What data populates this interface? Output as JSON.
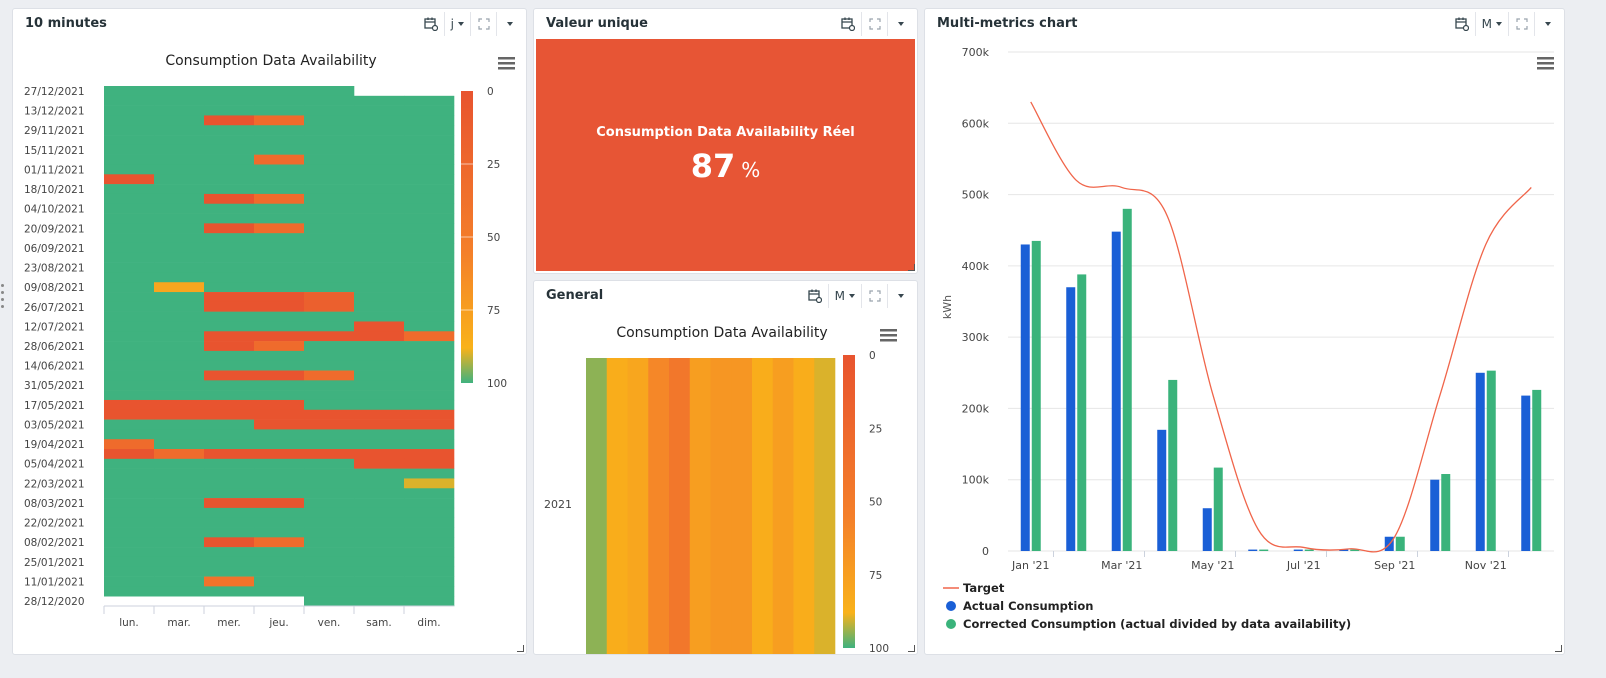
{
  "colors": {
    "green": "#3fb27f",
    "red": "#e8542f",
    "orange": "#f47f2a",
    "amber": "#f9a61a",
    "olive": "#8ab04e",
    "blue": "#1a5fd6",
    "teal": "#3ab37b",
    "target": "#f0654a"
  },
  "icons": {
    "calendar": "calendar-link-icon",
    "expand": "expand-icon",
    "dropdown": "chevron-down-icon",
    "menu": "hamburger-menu-icon"
  },
  "panel1": {
    "title": "10 minutes",
    "period": "j",
    "chart_title": "Consumption Data Availability",
    "rows": [
      "27/12/2021",
      "13/12/2021",
      "29/11/2021",
      "15/11/2021",
      "01/11/2021",
      "18/10/2021",
      "04/10/2021",
      "20/09/2021",
      "06/09/2021",
      "23/08/2021",
      "09/08/2021",
      "26/07/2021",
      "12/07/2021",
      "28/06/2021",
      "14/06/2021",
      "31/05/2021",
      "17/05/2021",
      "03/05/2021",
      "19/04/2021",
      "05/04/2021",
      "22/03/2021",
      "08/03/2021",
      "22/02/2021",
      "08/02/2021",
      "25/01/2021",
      "11/01/2021",
      "28/12/2020"
    ],
    "cols": [
      "lun.",
      "mar.",
      "mer.",
      "jeu.",
      "ven.",
      "sam.",
      "dim."
    ],
    "scale": [
      "0",
      "25",
      "50",
      "75",
      "100"
    ]
  },
  "panel2": {
    "title": "Valeur unique",
    "label": "Consumption Data Availability Réel",
    "value": "87",
    "unit": "%"
  },
  "panel3": {
    "title": "General",
    "period": "M",
    "chart_title": "Consumption Data Availability",
    "year": "2021",
    "scale": [
      "0",
      "25",
      "50",
      "75",
      "100"
    ]
  },
  "panel4": {
    "title": "Multi-metrics chart",
    "period": "M"
  },
  "chart_data": [
    {
      "type": "heatmap",
      "title": "Consumption Data Availability",
      "scale_range": [
        0,
        100
      ],
      "weeks": [
        "27/12/2021",
        "13/12/2021",
        "29/11/2021",
        "15/11/2021",
        "01/11/2021",
        "18/10/2021",
        "04/10/2021",
        "20/09/2021",
        "06/09/2021",
        "23/08/2021",
        "09/08/2021",
        "26/07/2021",
        "12/07/2021",
        "28/06/2021",
        "14/06/2021",
        "31/05/2021",
        "17/05/2021",
        "03/05/2021",
        "19/04/2021",
        "05/04/2021",
        "22/03/2021",
        "08/03/2021",
        "22/02/2021",
        "08/02/2021",
        "25/01/2021",
        "11/01/2021",
        "28/12/2020"
      ],
      "days": [
        "lun.",
        "mar.",
        "mer.",
        "jeu.",
        "ven.",
        "sam.",
        "dim."
      ],
      "values": [
        [
          100,
          100,
          100,
          100,
          100,
          null,
          null
        ],
        [
          100,
          100,
          100,
          100,
          100,
          100,
          100
        ],
        [
          100,
          100,
          100,
          100,
          100,
          100,
          100
        ],
        [
          100,
          100,
          0,
          30,
          100,
          100,
          100
        ],
        [
          100,
          100,
          100,
          100,
          100,
          100,
          100
        ],
        [
          100,
          100,
          100,
          100,
          100,
          100,
          100
        ],
        [
          100,
          100,
          100,
          100,
          100,
          100,
          100
        ],
        [
          100,
          100,
          100,
          30,
          100,
          100,
          100
        ],
        [
          100,
          100,
          100,
          100,
          100,
          100,
          100
        ],
        [
          0,
          100,
          100,
          100,
          100,
          100,
          100
        ],
        [
          100,
          100,
          100,
          100,
          100,
          100,
          100
        ],
        [
          100,
          100,
          0,
          30,
          100,
          100,
          100
        ],
        [
          100,
          100,
          100,
          100,
          100,
          100,
          100
        ],
        [
          100,
          100,
          100,
          100,
          100,
          100,
          100
        ],
        [
          100,
          100,
          0,
          30,
          100,
          100,
          100
        ],
        [
          100,
          100,
          100,
          100,
          100,
          100,
          100
        ],
        [
          100,
          100,
          100,
          100,
          100,
          100,
          100
        ],
        [
          100,
          100,
          100,
          100,
          100,
          100,
          100
        ],
        [
          100,
          100,
          100,
          100,
          100,
          100,
          100
        ],
        [
          100,
          100,
          100,
          100,
          100,
          100,
          100
        ],
        [
          100,
          80,
          100,
          100,
          100,
          100,
          100
        ],
        [
          100,
          100,
          0,
          0,
          15,
          100,
          100
        ],
        [
          100,
          100,
          0,
          0,
          15,
          100,
          100
        ],
        [
          100,
          100,
          100,
          100,
          100,
          100,
          100
        ],
        [
          100,
          100,
          100,
          100,
          100,
          0,
          100
        ],
        [
          100,
          100,
          0,
          0,
          0,
          0,
          30
        ],
        [
          100,
          100,
          0,
          30,
          100,
          100,
          100
        ],
        [
          100,
          100,
          100,
          100,
          100,
          100,
          100
        ],
        [
          100,
          100,
          100,
          100,
          100,
          100,
          100
        ],
        [
          100,
          100,
          0,
          0,
          30,
          100,
          100
        ],
        [
          100,
          100,
          100,
          100,
          100,
          100,
          100
        ],
        [
          100,
          100,
          100,
          100,
          100,
          100,
          100
        ],
        [
          0,
          0,
          0,
          0,
          100,
          100,
          100
        ],
        [
          0,
          0,
          0,
          0,
          0,
          0,
          0
        ],
        [
          100,
          100,
          100,
          0,
          0,
          0,
          0
        ],
        [
          100,
          100,
          100,
          100,
          100,
          100,
          100
        ],
        [
          30,
          100,
          100,
          100,
          100,
          100,
          100
        ],
        [
          0,
          30,
          0,
          0,
          0,
          0,
          0
        ],
        [
          100,
          100,
          100,
          100,
          100,
          0,
          0
        ],
        [
          100,
          100,
          100,
          100,
          100,
          100,
          100
        ],
        [
          100,
          100,
          100,
          100,
          100,
          100,
          90
        ],
        [
          100,
          100,
          100,
          100,
          100,
          100,
          100
        ],
        [
          100,
          100,
          0,
          0,
          100,
          100,
          100
        ],
        [
          100,
          100,
          100,
          100,
          100,
          100,
          100
        ],
        [
          100,
          100,
          100,
          100,
          100,
          100,
          100
        ],
        [
          100,
          100,
          100,
          100,
          100,
          100,
          100
        ],
        [
          100,
          100,
          0,
          30,
          100,
          100,
          100
        ],
        [
          100,
          100,
          100,
          100,
          100,
          100,
          100
        ],
        [
          100,
          100,
          100,
          100,
          100,
          100,
          100
        ],
        [
          100,
          100,
          100,
          100,
          100,
          100,
          100
        ],
        [
          100,
          100,
          40,
          100,
          100,
          100,
          100
        ],
        [
          100,
          100,
          100,
          100,
          100,
          100,
          100
        ],
        [
          null,
          null,
          null,
          null,
          100,
          100,
          100
        ]
      ]
    },
    {
      "type": "heatmap",
      "title": "Consumption Data Availability",
      "scale_range": [
        0,
        100
      ],
      "row": "2021",
      "values": [
        95,
        85,
        80,
        60,
        45,
        75,
        70,
        70,
        85,
        75,
        85,
        90
      ]
    },
    {
      "type": "bar",
      "title": "Multi-metrics chart",
      "ylabel": "kWh",
      "ylim": [
        0,
        700000
      ],
      "yticks": [
        "0",
        "100k",
        "200k",
        "300k",
        "400k",
        "500k",
        "600k",
        "700k"
      ],
      "x_tick_labels": [
        "Jan '21",
        "Mar '21",
        "May '21",
        "Jul '21",
        "Sep '21",
        "Nov '21"
      ],
      "categories": [
        "Jan 2021",
        "Feb 2021",
        "Mar 2021",
        "Apr 2021",
        "May 2021",
        "Jun 2021",
        "Jul 2021",
        "Aug 2021",
        "Sep 2021",
        "Oct 2021",
        "Nov 2021",
        "Dec 2021"
      ],
      "series": [
        {
          "name": "Target",
          "type": "line",
          "values": [
            630000,
            520000,
            510000,
            470000,
            220000,
            30000,
            5000,
            3000,
            20000,
            220000,
            430000,
            510000
          ]
        },
        {
          "name": "Actual Consumption",
          "type": "bar",
          "values": [
            430000,
            370000,
            448000,
            170000,
            60000,
            2000,
            2000,
            2000,
            20000,
            100000,
            250000,
            218000
          ]
        },
        {
          "name": "Corrected Consumption (actual divided by data availability)",
          "type": "bar",
          "values": [
            435000,
            388000,
            480000,
            240000,
            117000,
            2000,
            2000,
            2000,
            20000,
            108000,
            253000,
            226000
          ]
        }
      ],
      "legend": "bottom-left"
    }
  ]
}
